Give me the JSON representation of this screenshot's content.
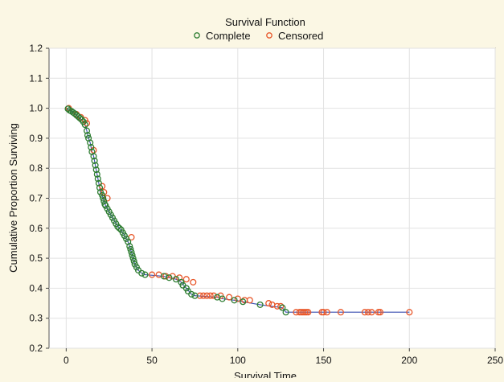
{
  "chart_data": {
    "type": "scatter",
    "title": "Survival Function",
    "xlabel": "Survival Time",
    "ylabel": "Cumulative Proportion Surviving",
    "xlim": [
      -10,
      250
    ],
    "ylim": [
      0.2,
      1.2
    ],
    "x_ticks": [
      0,
      50,
      100,
      150,
      200,
      250
    ],
    "y_ticks": [
      0.2,
      0.3,
      0.4,
      0.5,
      0.6,
      0.7,
      0.8,
      0.9,
      1.0,
      1.1,
      1.2
    ],
    "y_tick_labels": [
      "0.2",
      "0.3",
      "0.4",
      "0.5",
      "0.6",
      "0.7",
      "0.8",
      "0.9",
      "1.0",
      "1.1",
      "1.2"
    ],
    "grid": true,
    "legend_position": "top",
    "colors": {
      "background": "#fbf7e4",
      "plot_bg": "#ffffff",
      "complete": "#2e7d32",
      "censored": "#e8572a",
      "line": "#3a4fb0",
      "grid": "#e2e2e2"
    },
    "series": [
      {
        "name": "Complete",
        "marker": "circle-open",
        "points": [
          [
            1,
            0.998
          ],
          [
            2,
            0.993
          ],
          [
            3,
            0.99
          ],
          [
            4,
            0.986
          ],
          [
            5,
            0.982
          ],
          [
            6,
            0.977
          ],
          [
            7,
            0.972
          ],
          [
            8,
            0.967
          ],
          [
            9,
            0.962
          ],
          [
            10,
            0.955
          ],
          [
            11,
            0.945
          ],
          [
            12,
            0.925
          ],
          [
            12.5,
            0.91
          ],
          [
            13,
            0.9
          ],
          [
            14,
            0.885
          ],
          [
            14.5,
            0.87
          ],
          [
            15,
            0.855
          ],
          [
            16,
            0.84
          ],
          [
            16.5,
            0.825
          ],
          [
            17,
            0.81
          ],
          [
            17.5,
            0.795
          ],
          [
            18,
            0.78
          ],
          [
            18.5,
            0.765
          ],
          [
            19,
            0.75
          ],
          [
            19.5,
            0.735
          ],
          [
            20,
            0.72
          ],
          [
            21,
            0.71
          ],
          [
            21.5,
            0.7
          ],
          [
            22,
            0.69
          ],
          [
            22.5,
            0.68
          ],
          [
            23,
            0.675
          ],
          [
            24,
            0.665
          ],
          [
            25,
            0.655
          ],
          [
            26,
            0.645
          ],
          [
            27,
            0.635
          ],
          [
            28,
            0.625
          ],
          [
            29,
            0.615
          ],
          [
            30,
            0.605
          ],
          [
            31,
            0.6
          ],
          [
            32,
            0.595
          ],
          [
            33,
            0.585
          ],
          [
            34,
            0.575
          ],
          [
            35,
            0.565
          ],
          [
            36,
            0.555
          ],
          [
            37,
            0.54
          ],
          [
            37.5,
            0.53
          ],
          [
            38,
            0.52
          ],
          [
            38.5,
            0.51
          ],
          [
            39,
            0.5
          ],
          [
            39.5,
            0.49
          ],
          [
            40,
            0.48
          ],
          [
            41,
            0.47
          ],
          [
            42,
            0.46
          ],
          [
            44,
            0.45
          ],
          [
            46,
            0.445
          ],
          [
            57,
            0.44
          ],
          [
            60,
            0.435
          ],
          [
            64,
            0.43
          ],
          [
            67,
            0.42
          ],
          [
            68,
            0.41
          ],
          [
            70,
            0.4
          ],
          [
            71,
            0.39
          ],
          [
            73,
            0.38
          ],
          [
            75,
            0.375
          ],
          [
            88,
            0.37
          ],
          [
            91,
            0.365
          ],
          [
            98,
            0.36
          ],
          [
            103,
            0.355
          ],
          [
            113,
            0.345
          ],
          [
            126,
            0.335
          ],
          [
            128,
            0.32
          ]
        ]
      },
      {
        "name": "Censored",
        "marker": "circle-open",
        "points": [
          [
            1.5,
            1.0
          ],
          [
            6,
            0.98
          ],
          [
            8.5,
            0.97
          ],
          [
            11,
            0.96
          ],
          [
            12,
            0.95
          ],
          [
            16,
            0.86
          ],
          [
            21,
            0.74
          ],
          [
            22,
            0.72
          ],
          [
            24,
            0.7
          ],
          [
            38,
            0.57
          ],
          [
            50,
            0.445
          ],
          [
            54,
            0.445
          ],
          [
            58,
            0.44
          ],
          [
            62,
            0.44
          ],
          [
            66,
            0.435
          ],
          [
            70,
            0.43
          ],
          [
            74,
            0.42
          ],
          [
            78,
            0.375
          ],
          [
            80,
            0.375
          ],
          [
            82,
            0.375
          ],
          [
            84,
            0.375
          ],
          [
            86,
            0.375
          ],
          [
            90,
            0.375
          ],
          [
            95,
            0.37
          ],
          [
            100,
            0.365
          ],
          [
            104,
            0.36
          ],
          [
            107,
            0.36
          ],
          [
            118,
            0.35
          ],
          [
            120,
            0.345
          ],
          [
            123,
            0.34
          ],
          [
            125,
            0.34
          ],
          [
            134,
            0.32
          ],
          [
            136,
            0.32
          ],
          [
            137,
            0.32
          ],
          [
            138,
            0.32
          ],
          [
            139,
            0.32
          ],
          [
            140,
            0.32
          ],
          [
            141,
            0.32
          ],
          [
            149,
            0.32
          ],
          [
            150,
            0.32
          ],
          [
            152,
            0.32
          ],
          [
            160,
            0.32
          ],
          [
            174,
            0.32
          ],
          [
            176,
            0.32
          ],
          [
            178,
            0.32
          ],
          [
            182,
            0.32
          ],
          [
            183,
            0.32
          ],
          [
            200,
            0.32
          ]
        ]
      }
    ],
    "curve": [
      [
        0,
        1.0
      ],
      [
        2,
        0.993
      ],
      [
        4,
        0.986
      ],
      [
        6,
        0.977
      ],
      [
        8,
        0.967
      ],
      [
        10,
        0.955
      ],
      [
        11,
        0.945
      ],
      [
        12,
        0.925
      ],
      [
        13,
        0.9
      ],
      [
        14,
        0.885
      ],
      [
        15,
        0.855
      ],
      [
        16,
        0.84
      ],
      [
        17,
        0.81
      ],
      [
        18,
        0.78
      ],
      [
        19,
        0.75
      ],
      [
        20,
        0.72
      ],
      [
        21,
        0.71
      ],
      [
        22,
        0.69
      ],
      [
        23,
        0.675
      ],
      [
        25,
        0.655
      ],
      [
        27,
        0.635
      ],
      [
        29,
        0.615
      ],
      [
        31,
        0.6
      ],
      [
        33,
        0.585
      ],
      [
        35,
        0.565
      ],
      [
        36,
        0.555
      ],
      [
        37,
        0.54
      ],
      [
        38,
        0.52
      ],
      [
        39,
        0.5
      ],
      [
        40,
        0.48
      ],
      [
        41,
        0.47
      ],
      [
        42,
        0.46
      ],
      [
        44,
        0.45
      ],
      [
        46,
        0.445
      ],
      [
        57,
        0.44
      ],
      [
        60,
        0.435
      ],
      [
        64,
        0.43
      ],
      [
        67,
        0.42
      ],
      [
        70,
        0.4
      ],
      [
        73,
        0.38
      ],
      [
        75,
        0.375
      ],
      [
        88,
        0.37
      ],
      [
        91,
        0.365
      ],
      [
        98,
        0.36
      ],
      [
        103,
        0.355
      ],
      [
        113,
        0.345
      ],
      [
        126,
        0.335
      ],
      [
        128,
        0.32
      ],
      [
        200,
        0.32
      ]
    ]
  }
}
